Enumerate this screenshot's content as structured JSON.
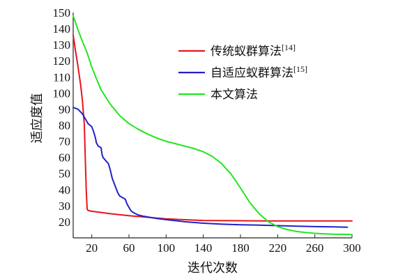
{
  "chart_data": {
    "type": "line",
    "xlabel": "迭代次数",
    "ylabel": "适应度值",
    "xlim": [
      0,
      300
    ],
    "ylim": [
      10,
      150
    ],
    "x_ticks": [
      20,
      60,
      100,
      140,
      180,
      220,
      260,
      300
    ],
    "y_ticks": [
      20,
      30,
      40,
      50,
      60,
      70,
      80,
      90,
      100,
      110,
      120,
      130,
      140,
      150
    ],
    "grid": false,
    "legend_position": "top-right",
    "series": [
      {
        "name": "传统蚁群算法",
        "ref": "[14]",
        "color": "#e8141c",
        "x": [
          0,
          2,
          5,
          8,
          10,
          12,
          13,
          14,
          15,
          16,
          20,
          40,
          60,
          80,
          100,
          140,
          180,
          220,
          260,
          300
        ],
        "y": [
          136,
          128,
          117,
          105,
          95,
          80,
          60,
          40,
          28,
          27,
          26.5,
          25,
          23.8,
          22.8,
          21.8,
          20.8,
          20.6,
          20.5,
          20.5,
          20.5
        ]
      },
      {
        "name": "自适应蚁群算法",
        "ref": "[15]",
        "color": "#1f22c8",
        "x": [
          0,
          5,
          10,
          13,
          16,
          20,
          22,
          24,
          25,
          27,
          30,
          31,
          32,
          35,
          38,
          40,
          42,
          44,
          46,
          48,
          50,
          53,
          56,
          58,
          60,
          61,
          62,
          64,
          67,
          70,
          75,
          80,
          90,
          100,
          120,
          140,
          160,
          180,
          200,
          220,
          240,
          260,
          280,
          295
        ],
        "y": [
          91,
          90,
          87,
          84,
          81,
          79,
          76,
          72,
          69,
          67,
          66,
          62,
          60,
          58,
          56,
          52,
          47,
          44,
          41,
          38,
          36,
          35,
          34,
          31,
          29,
          28,
          27,
          26,
          25,
          24.2,
          23.5,
          23,
          22,
          21.3,
          20,
          19.1,
          18.5,
          18.1,
          17.9,
          17.6,
          17.3,
          17,
          16.8,
          16.6
        ]
      },
      {
        "name": "本文算法",
        "ref": "",
        "color": "#21e61c",
        "x": [
          0,
          3,
          6,
          10,
          15,
          20,
          25,
          30,
          40,
          50,
          60,
          70,
          80,
          90,
          100,
          110,
          120,
          130,
          140,
          150,
          160,
          170,
          180,
          190,
          200,
          210,
          220,
          230,
          240,
          250,
          260,
          270,
          280,
          290,
          300
        ],
        "y": [
          148,
          143,
          138,
          132,
          125,
          116,
          109,
          102,
          93,
          86,
          81,
          77.5,
          74.5,
          72,
          70,
          68.5,
          67,
          65.5,
          63.5,
          60.5,
          56,
          49.5,
          41,
          32,
          25,
          20,
          17,
          15.2,
          14,
          13.3,
          12.8,
          12.5,
          12.3,
          12.2,
          12.1
        ]
      }
    ]
  }
}
